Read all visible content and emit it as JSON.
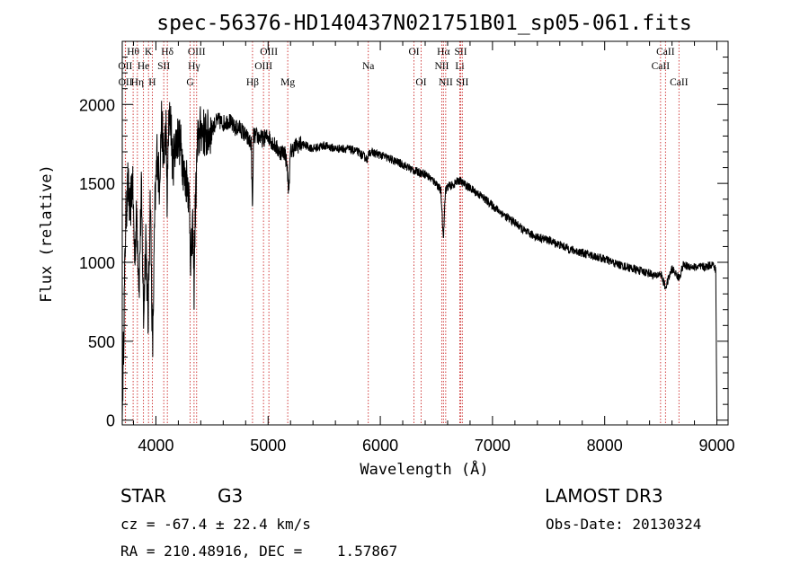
{
  "chart_data": {
    "type": "line",
    "title": "spec-56376-HD140437N021751B01_sp05-061.fits",
    "xlabel": "Wavelength (Å)",
    "ylabel": "Flux (relative)",
    "xlim": [
      3700,
      9100
    ],
    "ylim": [
      -30,
      2400
    ],
    "xticks": [
      4000,
      5000,
      6000,
      7000,
      8000,
      9000
    ],
    "yticks": [
      0,
      500,
      1000,
      1500,
      2000
    ],
    "series": [
      {
        "name": "spectrum",
        "x": [
          3700,
          3730,
          3750,
          3770,
          3790,
          3810,
          3830,
          3850,
          3870,
          3890,
          3910,
          3930,
          3950,
          3970,
          3990,
          4010,
          4030,
          4050,
          4070,
          4090,
          4101,
          4110,
          4130,
          4150,
          4170,
          4200,
          4230,
          4260,
          4280,
          4300,
          4310,
          4330,
          4340,
          4350,
          4370,
          4400,
          4450,
          4500,
          4550,
          4600,
          4650,
          4700,
          4750,
          4800,
          4850,
          4861,
          4870,
          4900,
          4950,
          5000,
          5050,
          5100,
          5150,
          5170,
          5183,
          5200,
          5250,
          5300,
          5400,
          5500,
          5600,
          5700,
          5800,
          5890,
          5900,
          6000,
          6100,
          6200,
          6300,
          6400,
          6450,
          6500,
          6540,
          6562,
          6580,
          6600,
          6650,
          6700,
          6800,
          6900,
          7000,
          7100,
          7200,
          7300,
          7400,
          7500,
          7600,
          7700,
          7800,
          7900,
          8000,
          8100,
          8200,
          8300,
          8400,
          8450,
          8498,
          8542,
          8600,
          8662,
          8700,
          8800,
          8900,
          8960,
          8990,
          9000
        ],
        "y": [
          0,
          1250,
          1500,
          1300,
          1550,
          1050,
          1300,
          850,
          1450,
          650,
          1200,
          600,
          1450,
          400,
          1300,
          1700,
          1500,
          1900,
          1650,
          1850,
          1350,
          1800,
          1950,
          1600,
          1750,
          1800,
          1700,
          1500,
          1550,
          1350,
          1000,
          1200,
          850,
          1300,
          1750,
          1850,
          1800,
          1850,
          1900,
          1880,
          1900,
          1850,
          1850,
          1800,
          1750,
          1300,
          1800,
          1800,
          1780,
          1800,
          1750,
          1700,
          1700,
          1600,
          1450,
          1700,
          1740,
          1750,
          1720,
          1740,
          1720,
          1720,
          1700,
          1650,
          1700,
          1680,
          1650,
          1620,
          1580,
          1560,
          1530,
          1500,
          1450,
          1150,
          1450,
          1480,
          1490,
          1520,
          1470,
          1420,
          1360,
          1300,
          1250,
          1190,
          1160,
          1140,
          1110,
          1080,
          1060,
          1040,
          1020,
          990,
          970,
          950,
          930,
          910,
          930,
          840,
          960,
          900,
          980,
          970,
          970,
          990,
          950,
          0
        ],
        "color": "#000000"
      }
    ],
    "line_markers": [
      {
        "label": "Hθ",
        "x": 3797,
        "row": 1
      },
      {
        "label": "K",
        "x": 3934,
        "row": 1
      },
      {
        "label": "Hδ",
        "x": 4102,
        "row": 1
      },
      {
        "label": "OIII",
        "x": 4363,
        "row": 1
      },
      {
        "label": "OIII",
        "x": 5007,
        "row": 1
      },
      {
        "label": "OI",
        "x": 6300,
        "row": 1
      },
      {
        "label": "Hα",
        "x": 6563,
        "row": 1
      },
      {
        "label": "SII",
        "x": 6717,
        "row": 1
      },
      {
        "label": "CaII",
        "x": 8542,
        "row": 1
      },
      {
        "label": "OII",
        "x": 3727,
        "row": 2
      },
      {
        "label": "He",
        "x": 3889,
        "row": 2
      },
      {
        "label": "SII",
        "x": 4070,
        "row": 2
      },
      {
        "label": "Hγ",
        "x": 4340,
        "row": 2
      },
      {
        "label": "OIII",
        "x": 4959,
        "row": 2
      },
      {
        "label": "Na",
        "x": 5893,
        "row": 2
      },
      {
        "label": "NII",
        "x": 6548,
        "row": 2
      },
      {
        "label": "Li",
        "x": 6708,
        "row": 2
      },
      {
        "label": "CaII",
        "x": 8498,
        "row": 2
      },
      {
        "label": "OII",
        "x": 3729,
        "row": 3
      },
      {
        "label": "Hη",
        "x": 3835,
        "row": 3
      },
      {
        "label": "H",
        "x": 3968,
        "row": 3
      },
      {
        "label": "G",
        "x": 4305,
        "row": 3
      },
      {
        "label": "Hβ",
        "x": 4861,
        "row": 3
      },
      {
        "label": "Mg",
        "x": 5175,
        "row": 3
      },
      {
        "label": "OI",
        "x": 6364,
        "row": 3
      },
      {
        "label": "NII",
        "x": 6583,
        "row": 3
      },
      {
        "label": "SII",
        "x": 6731,
        "row": 3
      },
      {
        "label": "CaII",
        "x": 8662,
        "row": 3
      }
    ]
  },
  "info": {
    "object_class": "STAR",
    "subclass": "G3",
    "survey": "LAMOST DR3",
    "redshift": "cz = -67.4 ± 22.4 km/s",
    "obs_date": "Obs-Date: 20130324",
    "coords": "RA = 210.48916, DEC =    1.57867"
  }
}
